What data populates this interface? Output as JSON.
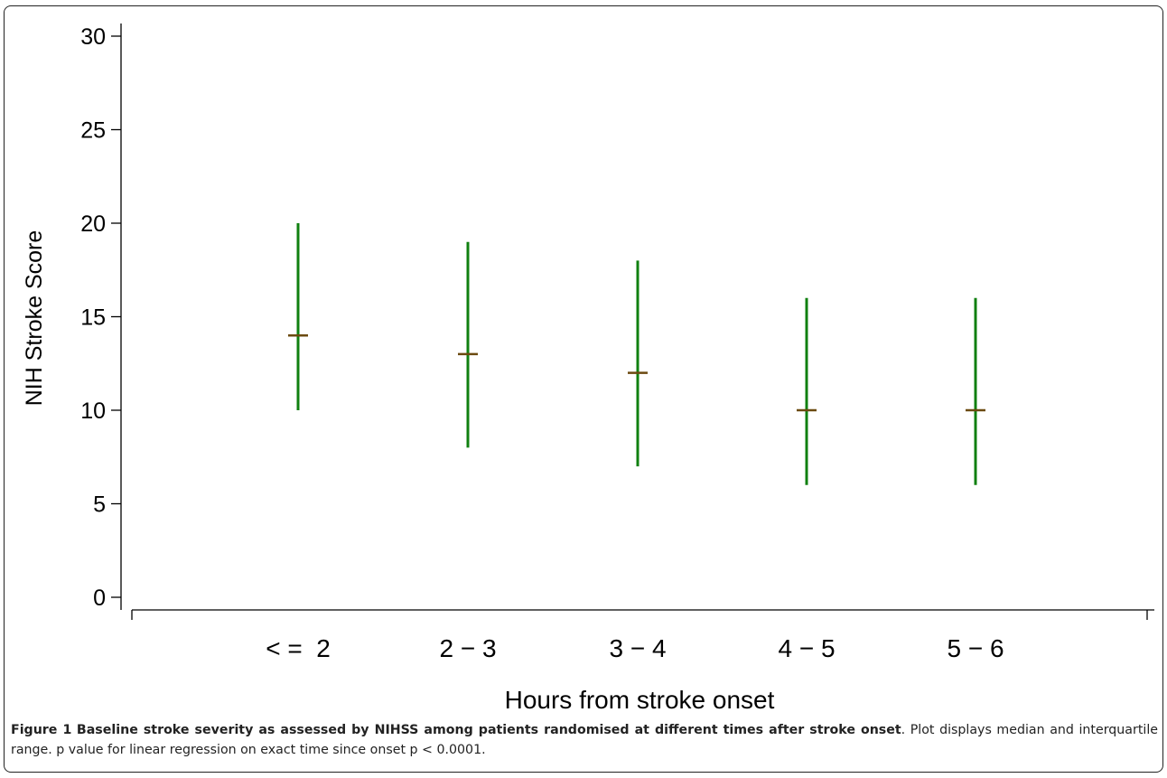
{
  "chart_data": {
    "type": "error-bar",
    "title": "",
    "xlabel": "Hours from stroke onset",
    "ylabel": "NIH Stroke Score",
    "ylim": [
      0,
      30
    ],
    "yticks": [
      "0",
      "5",
      "10",
      "15",
      "20",
      "25",
      "30"
    ],
    "categories": [
      "< =  2",
      "2 − 3",
      "3 − 4",
      "4 − 5",
      "5 − 6"
    ],
    "median": [
      14,
      13,
      12,
      10,
      10
    ],
    "q1": [
      10,
      8,
      7,
      6,
      6
    ],
    "q3": [
      20,
      19,
      18,
      16,
      16
    ],
    "grid": false,
    "legend": "none",
    "colors": {
      "range": "#108010",
      "median": "#6b4a10",
      "axis": "#000000"
    }
  },
  "caption": {
    "label": "Figure 1",
    "title": "Baseline stroke severity as assessed by NIHSS among patients randomised at different times after stroke onset",
    "text": ". Plot displays median and interquartile range. p value for linear regression on exact time since onset p < 0.0001."
  }
}
